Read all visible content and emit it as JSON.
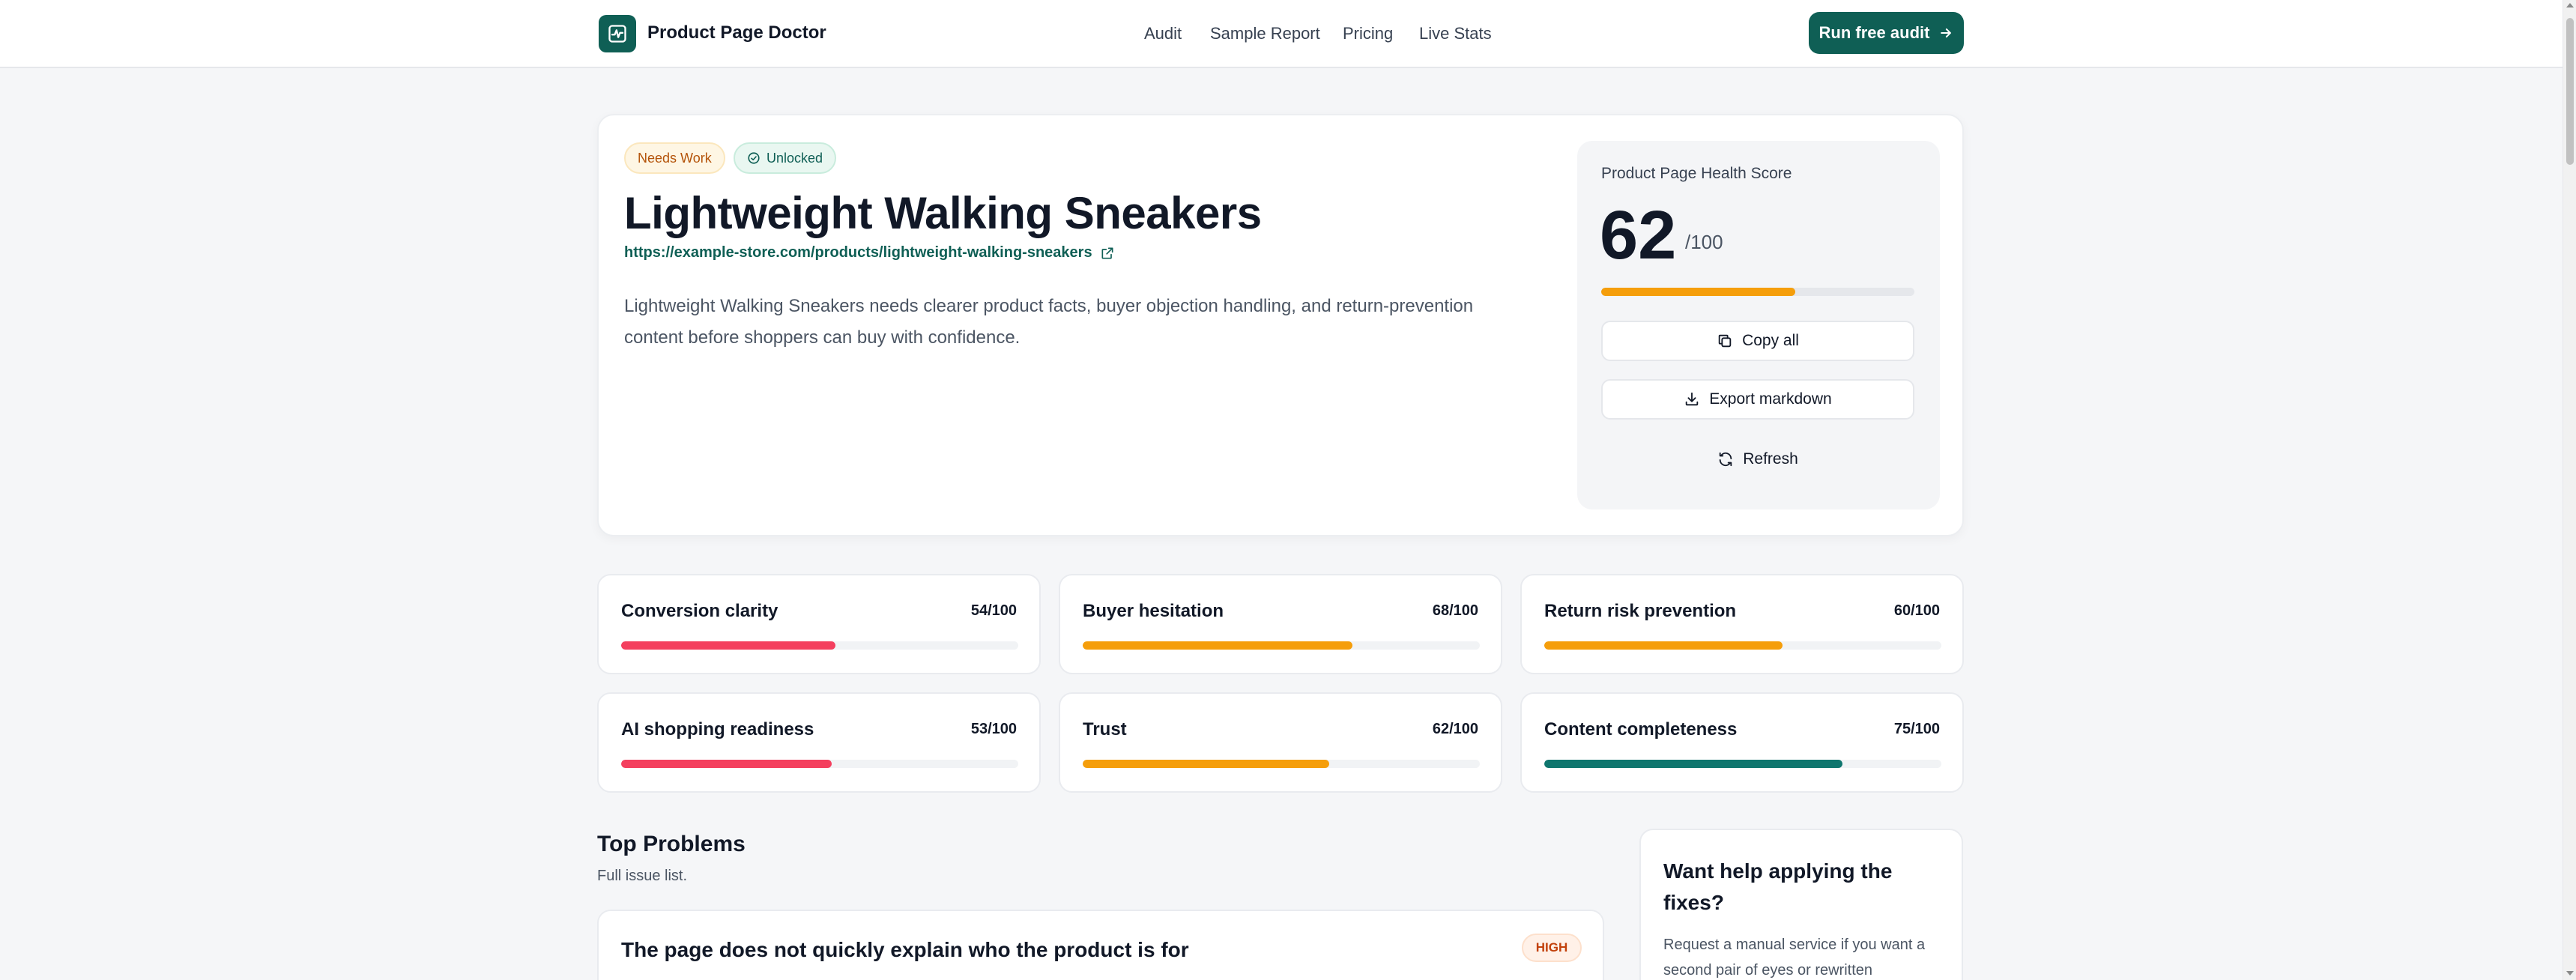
{
  "brand": {
    "name": "Product Page Doctor",
    "icon": "pulse-icon",
    "color": "#0f5f55"
  },
  "nav": {
    "items": [
      "Audit",
      "Sample Report",
      "Pricing",
      "Live Stats"
    ]
  },
  "header": {
    "cta_label": "Run free audit"
  },
  "hero": {
    "badges": {
      "status": "Needs Work",
      "access": "Unlocked"
    },
    "title": "Lightweight Walking Sneakers",
    "url": "https://example-store.com/products/lightweight-walking-sneakers",
    "description": "Lightweight Walking Sneakers needs clearer product facts, buyer objection handling, and return-prevention content before shoppers can buy with confidence."
  },
  "score_panel": {
    "label": "Product Page Health Score",
    "score": "62",
    "out_of": "/100",
    "score_fraction": 0.62,
    "copy_label": "Copy all",
    "export_label": "Export markdown",
    "refresh_label": "Refresh"
  },
  "metrics": [
    {
      "name": "Conversion clarity",
      "value": "54/100",
      "fraction": 0.54,
      "color": "#f43f5e"
    },
    {
      "name": "Buyer hesitation",
      "value": "68/100",
      "fraction": 0.68,
      "color": "#f59e0b"
    },
    {
      "name": "Return risk prevention",
      "value": "60/100",
      "fraction": 0.6,
      "color": "#f59e0b"
    },
    {
      "name": "AI shopping readiness",
      "value": "53/100",
      "fraction": 0.53,
      "color": "#f43f5e"
    },
    {
      "name": "Trust",
      "value": "62/100",
      "fraction": 0.62,
      "color": "#f59e0b"
    },
    {
      "name": "Content completeness",
      "value": "75/100",
      "fraction": 0.75,
      "color": "#0f766e"
    }
  ],
  "problems": {
    "title": "Top Problems",
    "subtitle": "Full issue list.",
    "items": [
      {
        "title": "The page does not quickly explain who the product is for",
        "severity": "HIGH"
      }
    ]
  },
  "help": {
    "title": "Want help applying the fixes?",
    "text": "Request a manual service if you want a second pair of eyes or rewritten"
  }
}
